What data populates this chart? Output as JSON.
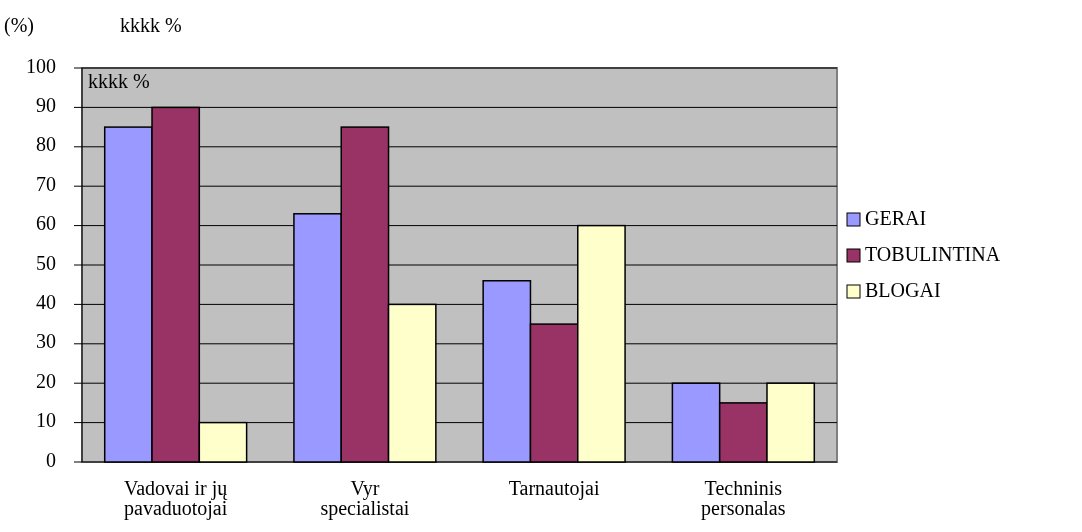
{
  "chart_data": {
    "type": "bar",
    "ylabel": "(%)",
    "annotations": [
      "kkkk  %",
      "kkkk  %"
    ],
    "categories": [
      "Vadovai ir jų\npavaduotojai",
      "Vyr\nspecialistai",
      "Tarnautojai",
      "Techninis\npersonalas"
    ],
    "series": [
      {
        "name": "GERAI",
        "color": "#9999ff",
        "values": [
          85,
          63,
          46,
          20
        ]
      },
      {
        "name": "TOBULINTINA",
        "color": "#993366",
        "values": [
          90,
          85,
          35,
          15
        ]
      },
      {
        "name": "BLOGAI",
        "color": "#ffffcc",
        "values": [
          10,
          40,
          60,
          20
        ]
      }
    ],
    "ylim": [
      0,
      100
    ],
    "yticks": [
      0,
      10,
      20,
      30,
      40,
      50,
      60,
      70,
      80,
      90,
      100
    ],
    "grid": "y",
    "legend": "right"
  }
}
